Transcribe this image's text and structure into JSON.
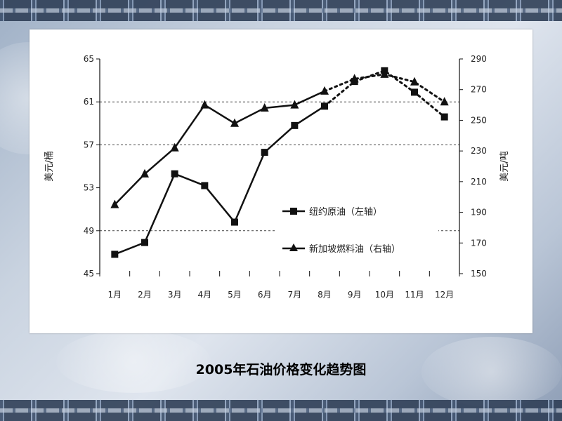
{
  "caption": "2005年石油价格变化趋势图",
  "colors": {
    "line": "#111111",
    "panel": "#ffffff"
  },
  "chart_data": {
    "type": "line",
    "categories": [
      "1月",
      "2月",
      "3月",
      "4月",
      "5月",
      "6月",
      "7月",
      "8月",
      "9月",
      "10月",
      "11月",
      "12月"
    ],
    "y_left": {
      "label": "美元/桶",
      "ticks": [
        "45",
        "49",
        "53",
        "57",
        "61",
        "65"
      ],
      "range": [
        45,
        65
      ]
    },
    "y_right": {
      "label": "美元/吨",
      "ticks": [
        "150",
        "170",
        "190",
        "210",
        "230",
        "250",
        "270",
        "290"
      ],
      "range": [
        150,
        290
      ]
    },
    "gridlines_left": [
      49,
      57,
      61
    ],
    "series": [
      {
        "name": "纽约原油（左轴）",
        "axis": "left",
        "marker": "square",
        "values": [
          46.8,
          47.9,
          54.3,
          53.2,
          49.8,
          56.3,
          58.8,
          60.6,
          62.9,
          63.9,
          61.9,
          59.6
        ],
        "solid_through_index": 7
      },
      {
        "name": "新加坡燃料油（右轴）",
        "axis": "right",
        "marker": "triangle",
        "values": [
          195,
          215,
          232,
          260,
          248,
          258,
          260,
          269,
          277,
          280,
          275,
          262
        ],
        "solid_through_index": 7
      }
    ],
    "legend_position": "lower-right",
    "solid_then_dotted": true
  }
}
